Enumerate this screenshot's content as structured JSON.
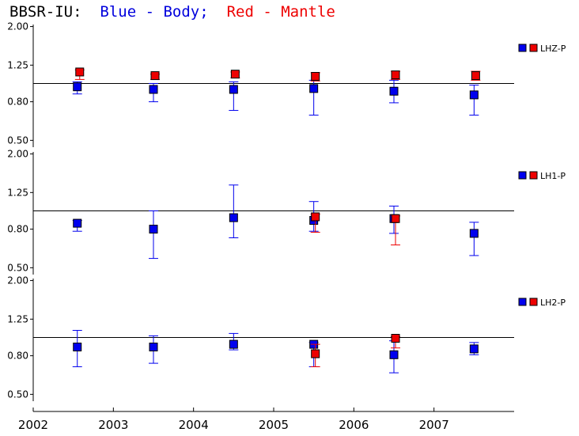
{
  "title": {
    "station": "BBSR-IU:",
    "blue_label": "Blue - Body;",
    "red_label": "Red - Mantle"
  },
  "colors": {
    "body": "#0000ee",
    "mantle": "#ee0000",
    "axis": "#000000"
  },
  "chart_data": [
    {
      "type": "scatter",
      "legend": "LHZ-P",
      "legend_placement": "right",
      "yticks": [
        "0.50",
        "0.80",
        "1.25",
        "2.00"
      ],
      "ytick_values": [
        0.5,
        0.8,
        1.25,
        2.0
      ],
      "ylim": [
        0.46,
        2.05
      ],
      "yscale": "log",
      "reference_line": 1.0,
      "series": [
        {
          "role": "body",
          "points": [
            {
              "x": 2002.55,
              "y": 0.96,
              "lo": 0.88,
              "hi": 1.02
            },
            {
              "x": 2003.5,
              "y": 0.93,
              "lo": 0.8,
              "hi": 1.0
            },
            {
              "x": 2004.5,
              "y": 0.93,
              "lo": 0.72,
              "hi": 1.02
            },
            {
              "x": 2005.5,
              "y": 0.94,
              "lo": 0.68,
              "hi": 1.04
            },
            {
              "x": 2006.5,
              "y": 0.91,
              "lo": 0.79,
              "hi": 1.04
            },
            {
              "x": 2007.5,
              "y": 0.87,
              "lo": 0.68,
              "hi": 0.98
            }
          ]
        },
        {
          "role": "mantle",
          "points": [
            {
              "x": 2002.58,
              "y": 1.15,
              "lo": 1.05,
              "hi": 1.18
            },
            {
              "x": 2003.52,
              "y": 1.1,
              "lo": 1.05,
              "hi": 1.12
            },
            {
              "x": 2004.52,
              "y": 1.12,
              "lo": 1.07,
              "hi": 1.15
            },
            {
              "x": 2005.52,
              "y": 1.09,
              "lo": 1.03,
              "hi": 1.14
            },
            {
              "x": 2006.52,
              "y": 1.11,
              "lo": 1.05,
              "hi": 1.16
            },
            {
              "x": 2007.52,
              "y": 1.1,
              "lo": 1.04,
              "hi": 1.16
            }
          ]
        }
      ]
    },
    {
      "type": "scatter",
      "legend": "LH1-P",
      "legend_placement": "right",
      "yticks": [
        "0.50",
        "0.80",
        "1.25",
        "2.00"
      ],
      "ytick_values": [
        0.5,
        0.8,
        1.25,
        2.0
      ],
      "ylim": [
        0.46,
        2.05
      ],
      "yscale": "log",
      "reference_line": 1.0,
      "series": [
        {
          "role": "body",
          "points": [
            {
              "x": 2002.55,
              "y": 0.86,
              "lo": 0.78,
              "hi": 0.89
            },
            {
              "x": 2003.5,
              "y": 0.8,
              "lo": 0.56,
              "hi": 1.0
            },
            {
              "x": 2004.5,
              "y": 0.92,
              "lo": 0.72,
              "hi": 1.37
            },
            {
              "x": 2005.5,
              "y": 0.89,
              "lo": 0.78,
              "hi": 1.12
            },
            {
              "x": 2006.5,
              "y": 0.91,
              "lo": 0.76,
              "hi": 1.06
            },
            {
              "x": 2007.5,
              "y": 0.76,
              "lo": 0.58,
              "hi": 0.87
            }
          ]
        },
        {
          "role": "mantle",
          "points": [
            {
              "x": 2005.52,
              "y": 0.93,
              "lo": 0.77,
              "hi": 0.96
            },
            {
              "x": 2006.52,
              "y": 0.91,
              "lo": 0.66,
              "hi": 0.94
            }
          ]
        }
      ]
    },
    {
      "type": "scatter",
      "legend": "LH2-P",
      "legend_placement": "right",
      "yticks": [
        "0.50",
        "0.80",
        "1.25",
        "2.00"
      ],
      "ytick_values": [
        0.5,
        0.8,
        1.25,
        2.0
      ],
      "ylim": [
        0.46,
        2.05
      ],
      "yscale": "log",
      "reference_line": 1.0,
      "xticks": [
        "2002",
        "2003",
        "2004",
        "2005",
        "2006",
        "2007"
      ],
      "xtick_values": [
        2002,
        2003,
        2004,
        2005,
        2006,
        2007
      ],
      "xlim": [
        2002,
        2008
      ],
      "series": [
        {
          "role": "body",
          "points": [
            {
              "x": 2002.55,
              "y": 0.89,
              "lo": 0.7,
              "hi": 1.09
            },
            {
              "x": 2003.5,
              "y": 0.89,
              "lo": 0.73,
              "hi": 1.02
            },
            {
              "x": 2004.5,
              "y": 0.92,
              "lo": 0.86,
              "hi": 1.05
            },
            {
              "x": 2005.5,
              "y": 0.92,
              "lo": 0.7,
              "hi": 0.94
            },
            {
              "x": 2006.5,
              "y": 0.81,
              "lo": 0.65,
              "hi": 0.96
            },
            {
              "x": 2007.5,
              "y": 0.87,
              "lo": 0.81,
              "hi": 0.94
            }
          ]
        },
        {
          "role": "mantle",
          "points": [
            {
              "x": 2005.52,
              "y": 0.82,
              "lo": 0.7,
              "hi": 0.92
            },
            {
              "x": 2006.52,
              "y": 0.99,
              "lo": 0.88,
              "hi": 1.01
            }
          ]
        }
      ]
    }
  ]
}
